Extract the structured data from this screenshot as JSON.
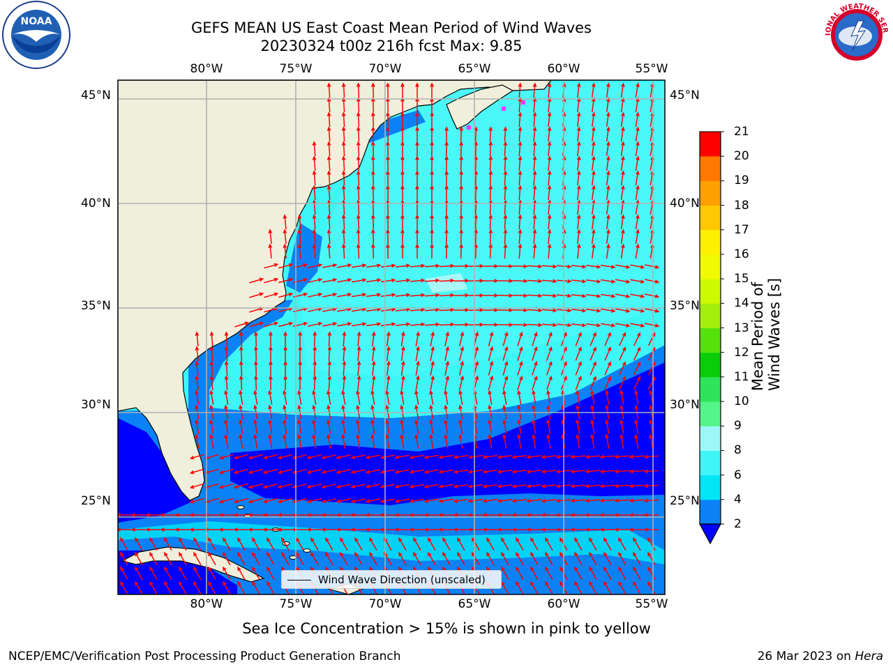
{
  "title": {
    "line1": "GEFS MEAN US East Coast Mean Period of Wind Waves",
    "line2": "20230324 t00z 216h fcst   Max: 9.85"
  },
  "map": {
    "lon_labels": [
      "80°W",
      "75°W",
      "70°W",
      "65°W",
      "60°W",
      "55°W"
    ],
    "lat_labels": [
      "45°N",
      "40°N",
      "35°N",
      "30°N",
      "25°N"
    ],
    "lon_range": [
      -85,
      -54.3
    ],
    "lat_range": [
      20.5,
      45.8
    ],
    "land_color": "#efefdc",
    "ocean_color": "#3df7f7",
    "arrow_color": "#ff0000",
    "grid_color": "#b0b0b0"
  },
  "legend": {
    "label": "Wind Wave Direction (unscaled)"
  },
  "colorbar": {
    "title": "Mean Period of Wind Waves [s]",
    "ticks": [
      "2",
      "4",
      "6",
      "8",
      "9",
      "10",
      "11",
      "12",
      "13",
      "14",
      "15",
      "16",
      "17",
      "18",
      "19",
      "20",
      "21"
    ],
    "colors": [
      "#0a82f5",
      "#00e6f5",
      "#40f5f5",
      "#9ef7f7",
      "#55f58a",
      "#2fe45a",
      "#0acd0a",
      "#55e10a",
      "#a5f00a",
      "#cdfa00",
      "#f0fa00",
      "#fff000",
      "#ffc800",
      "#ffa000",
      "#ff7800",
      "#ff4600"
    ],
    "under_color": "#0000ff",
    "top_color": "#ff0000"
  },
  "notes": {
    "sea_ice": "Sea Ice Concentration > 15% is shown in pink to yellow"
  },
  "footer": {
    "left": "NCEP/EMC/Verification Post Processing Product Generation Branch",
    "date": "26 Mar 2023 on ",
    "machine": "Hera"
  },
  "logos": {
    "left": "NOAA",
    "right": "NATIONAL WEATHER SERVICE"
  }
}
